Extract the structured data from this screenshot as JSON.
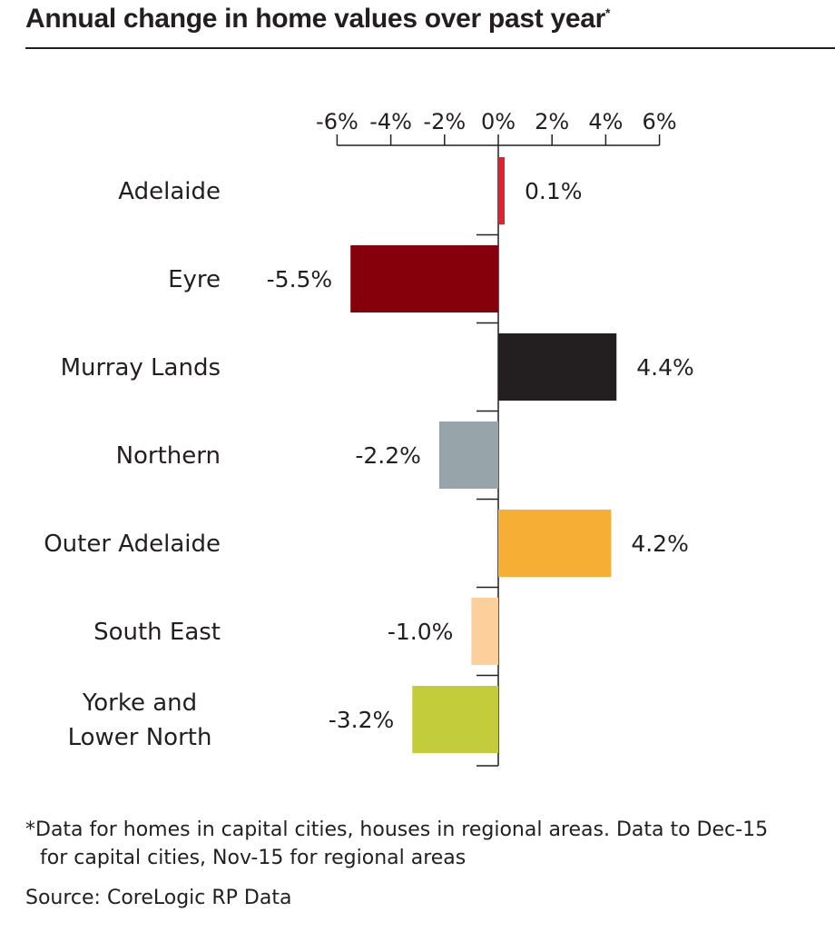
{
  "title": {
    "text": "Annual change in home values over past year",
    "marker": "*"
  },
  "footnote": {
    "line1": "*Data for homes in capital cities, houses in regional areas. Data to Dec-15",
    "line2": "for capital cities, Nov-15 for regional areas"
  },
  "source": "Source: CoreLogic RP Data",
  "chart_data": {
    "type": "bar",
    "orientation": "horizontal",
    "xlim": [
      -6,
      6
    ],
    "ticks": [
      -6,
      -4,
      -2,
      0,
      2,
      4,
      6
    ],
    "tick_labels": [
      "-6%",
      "-4%",
      "-2%",
      "0%",
      "2%",
      "4%",
      "6%"
    ],
    "categories": [
      [
        "Adelaide"
      ],
      [
        "Eyre"
      ],
      [
        "Murray Lands"
      ],
      [
        "Northern"
      ],
      [
        "Outer Adelaide"
      ],
      [
        "South East"
      ],
      [
        "Yorke and",
        "Lower North"
      ]
    ],
    "values": [
      0.1,
      -5.5,
      4.4,
      -2.2,
      4.2,
      -1.0,
      -3.2
    ],
    "value_labels": [
      "0.1%",
      "-5.5%",
      "4.4%",
      "-2.2%",
      "4.2%",
      "-1.0%",
      "-3.2%"
    ],
    "colors": [
      "#e5202e",
      "#85000b",
      "#231f20",
      "#97a4aa",
      "#f7ae35",
      "#fdd09b",
      "#c3cc3a"
    ]
  }
}
